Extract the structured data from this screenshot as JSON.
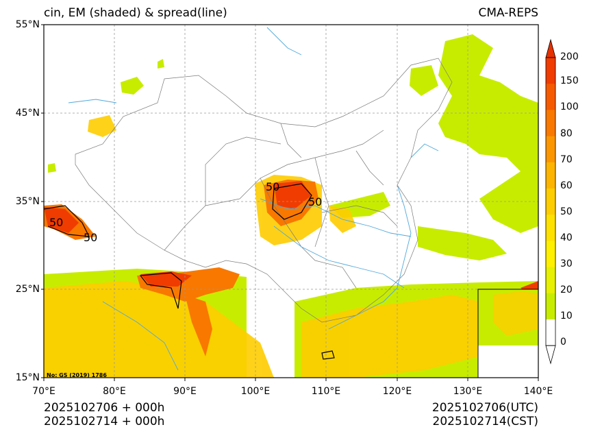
{
  "title_left": "cin, EM (shaded) & spread(line)",
  "title_right": "CMA-REPS",
  "lat_labels": [
    "55°N",
    "45°N",
    "35°N",
    "25°N",
    "15°N"
  ],
  "lon_labels": [
    "70°E",
    "80°E",
    "90°E",
    "100°E",
    "110°E",
    "120°E",
    "130°E",
    "140°E"
  ],
  "colorbar_labels": [
    "200",
    "150",
    "100",
    "80",
    "70",
    "60",
    "50",
    "40",
    "30",
    "20",
    "10",
    "0"
  ],
  "colorbar_colors": [
    "#f03c00",
    "#f55a00",
    "#f87800",
    "#fb9600",
    "#fdb400",
    "#fecd00",
    "#ffe100",
    "#fff000",
    "#e6f000",
    "#c8ec00",
    "#ffffff"
  ],
  "colors": {
    "over": "#e63200",
    "under": "#ffffff",
    "contour": "#000000",
    "rivers": "#4fa8dc",
    "borders": "#7a7a7a"
  },
  "contour_labels": [
    "50",
    "50",
    "50",
    "50"
  ],
  "gs_note": "No: GS (2019) 1786",
  "footer": {
    "left_line1": "2025102706  +  000h",
    "left_line2": "2025102714  +  000h",
    "right_line1": "2025102706(UTC)",
    "right_line2": "2025102714(CST)"
  }
}
